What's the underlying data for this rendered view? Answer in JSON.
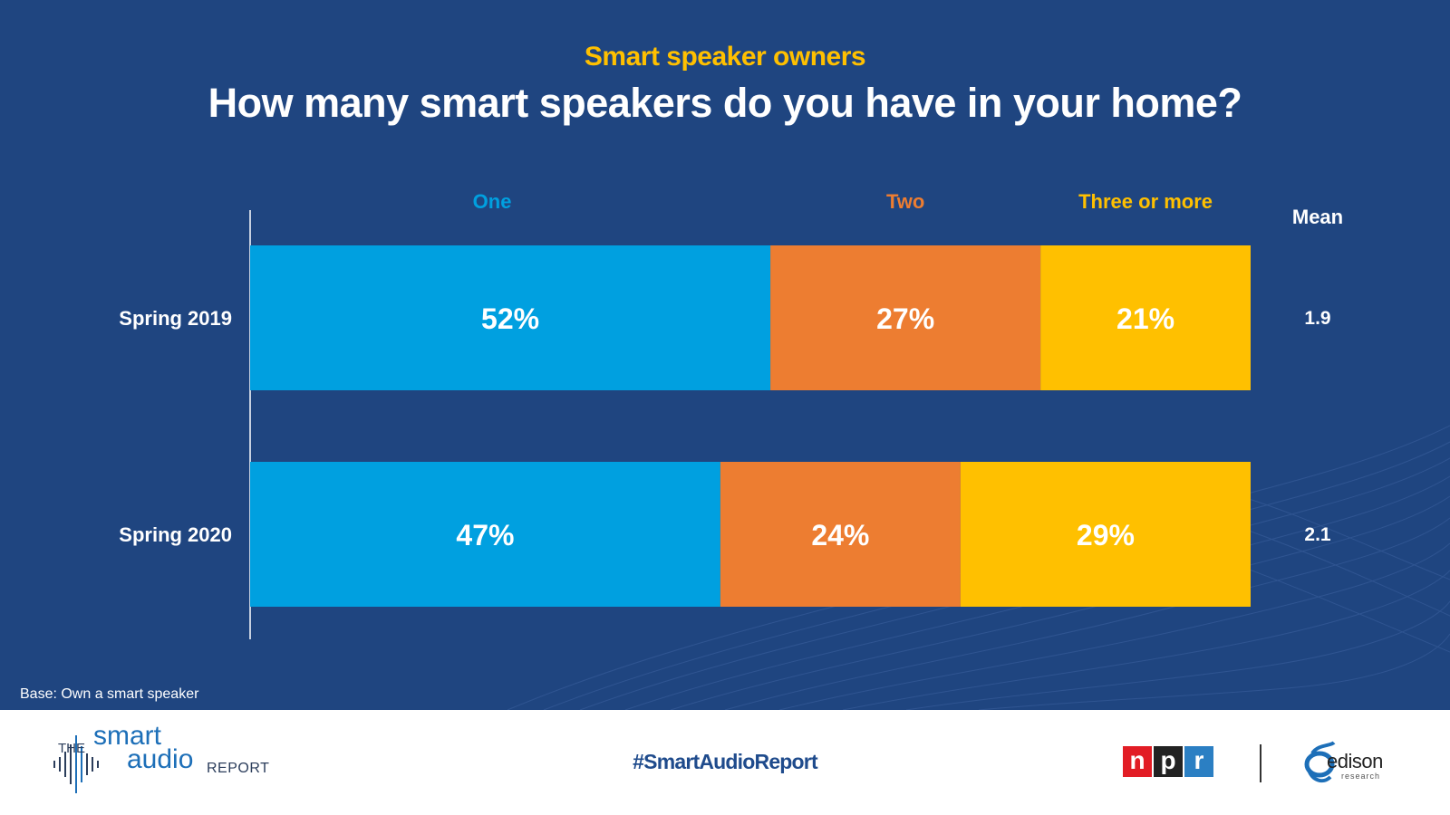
{
  "header": {
    "subtitle": "Smart speaker owners",
    "title": "How many smart speakers do you have in your home?"
  },
  "chart_data": {
    "type": "bar",
    "orientation": "horizontal",
    "stacked": true,
    "categories": [
      "Spring 2019",
      "Spring 2020"
    ],
    "series": [
      {
        "name": "One",
        "values": [
          52,
          47
        ],
        "labels": [
          "52%",
          "47%"
        ],
        "color": "#00a0e0"
      },
      {
        "name": "Two",
        "values": [
          27,
          24
        ],
        "labels": [
          "27%",
          "24%"
        ],
        "color": "#ed7d31"
      },
      {
        "name": "Three or more",
        "values": [
          21,
          29
        ],
        "labels": [
          "21%",
          "29%"
        ],
        "color": "#ffc000"
      }
    ],
    "mean_header": "Mean",
    "means": [
      "1.9",
      "2.1"
    ],
    "xlim": [
      0,
      100
    ],
    "legend_position": "top",
    "grid": false
  },
  "note": "Base: Own a smart speaker",
  "footer": {
    "logo_the": "THE",
    "logo_smart": "smart",
    "logo_audio": "audio",
    "logo_report": "REPORT",
    "hashtag": "#SmartAudioReport",
    "npr_letters": [
      "n",
      "p",
      "r"
    ],
    "npr_colors": [
      "#e21d25",
      "#222222",
      "#2b7fc3"
    ],
    "edison_name": "edison",
    "edison_sub": "research"
  },
  "colors": {
    "background": "#1f4580",
    "accent": "#ffc000"
  }
}
